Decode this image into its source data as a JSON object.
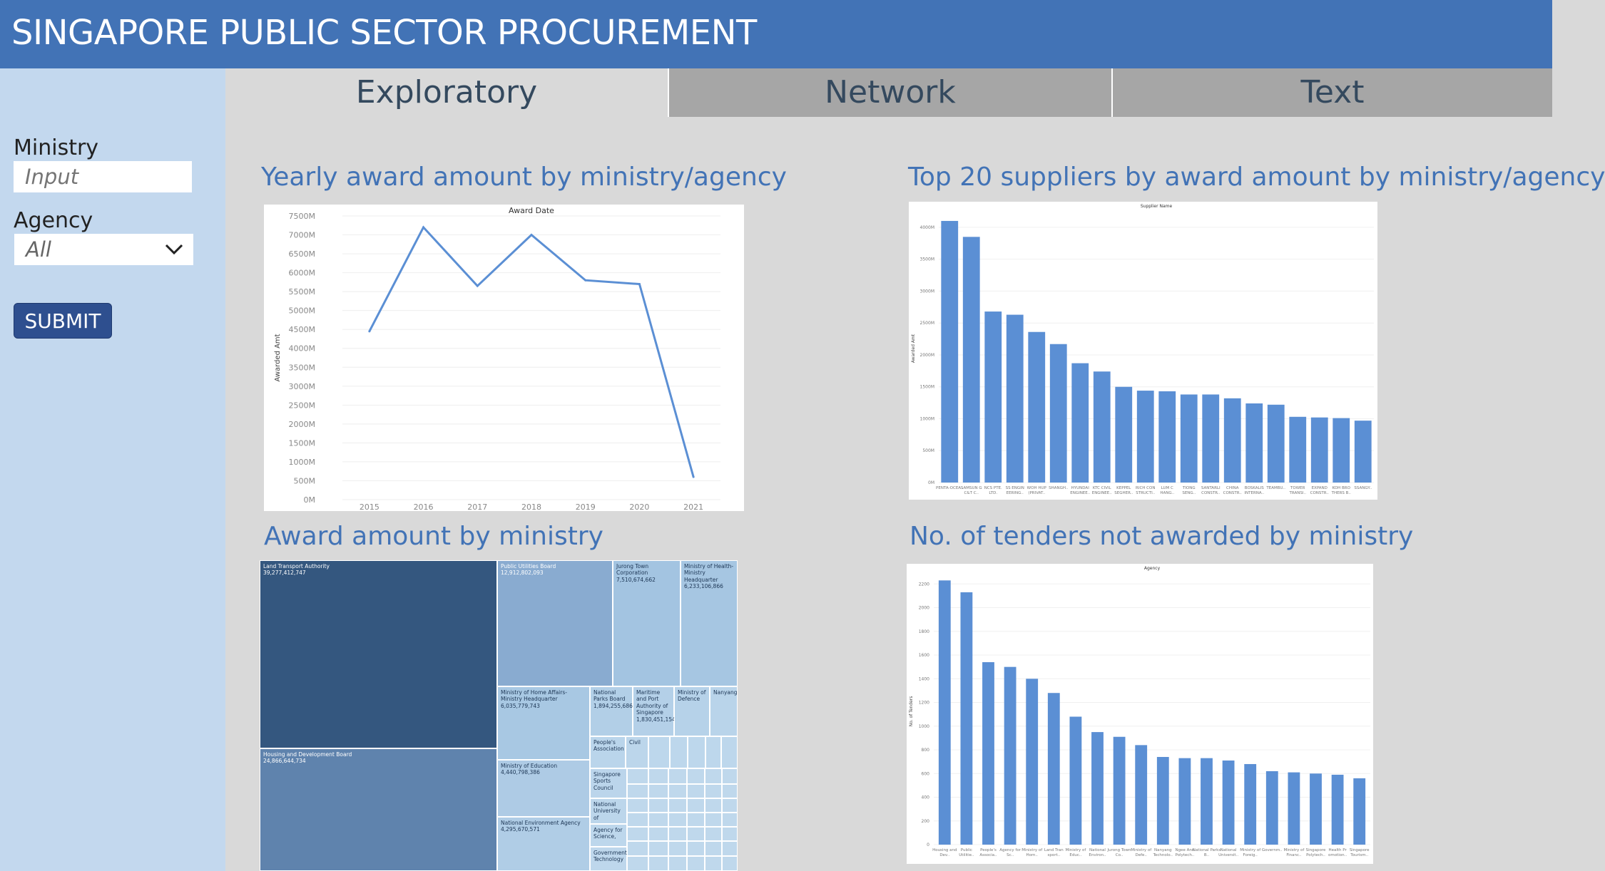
{
  "header": {
    "title": "SINGAPORE PUBLIC SECTOR PROCUREMENT"
  },
  "tabs": [
    {
      "label": "Exploratory",
      "active": true
    },
    {
      "label": "Network",
      "active": false
    },
    {
      "label": "Text",
      "active": false
    }
  ],
  "sidebar": {
    "ministry_label": "Ministry",
    "ministry_placeholder": "Input",
    "agency_label": "Agency",
    "agency_value": "All",
    "submit_label": "SUBMIT"
  },
  "panels": {
    "yearly_title": "Yearly award amount by ministry/agency",
    "suppliers_title": "Top 20 suppliers by award amount by ministry/agency",
    "treemap_title": "Award amount by ministry",
    "tenders_title": "No. of tenders not awarded by ministry"
  },
  "chart_data": [
    {
      "type": "line",
      "title": "Award Date",
      "ylabel": "Awarded Amt",
      "x": [
        "2015",
        "2016",
        "2017",
        "2018",
        "2019",
        "2020",
        "2021"
      ],
      "y": [
        4450,
        7200,
        5650,
        7000,
        5800,
        5700,
        600
      ],
      "y_ticks": [
        "0M",
        "500M",
        "1000M",
        "1500M",
        "2000M",
        "2500M",
        "3000M",
        "3500M",
        "4000M",
        "4500M",
        "5000M",
        "5500M",
        "6000M",
        "6500M",
        "7000M",
        "7500M"
      ],
      "ylim": [
        0,
        7500
      ],
      "color": "#5b8fd4",
      "grid": true
    },
    {
      "type": "bar",
      "title": "Supplier Name",
      "ylabel": "Awarded Amt",
      "categories": [
        "PENTA-OCEA..",
        "SAMSUN G C&T C..",
        "NCS PTE. LTD.",
        "SS ENGIN EERING..",
        "WOH HUP (PRIVAT..",
        "SHANGH..",
        "HYUNDAI ENGINEE..",
        "KTC CIVIL ENGINEE..",
        "KEPPEL SEGHER..",
        "RICH CON STRUCTI..",
        "LUM C HANG..",
        "TIONG SENG..",
        "SANTARLI CONSTR..",
        "CHINA CONSTR..",
        "BOSKALIS INTERNA..",
        "TEAMBU..",
        "TOWER TRANSI..",
        "EXPAND CONSTR..",
        "KOH BRO THERS B..",
        "SSANGY.."
      ],
      "values": [
        4100,
        3850,
        2680,
        2630,
        2360,
        2170,
        1870,
        1740,
        1500,
        1440,
        1430,
        1380,
        1380,
        1320,
        1240,
        1220,
        1030,
        1020,
        1010,
        970
      ],
      "y_ticks": [
        "0M",
        "500M",
        "1000M",
        "1500M",
        "2000M",
        "2500M",
        "3000M",
        "3500M",
        "4000M"
      ],
      "ylim": [
        0,
        4200
      ],
      "color": "#5b8fd4"
    },
    {
      "type": "bar",
      "title": "Agency",
      "ylabel": "No. of Tenders",
      "categories": [
        "Housing and Dev..",
        "Public Utilitie..",
        "People's Associa..",
        "Agency for Sc..",
        "Ministry of Hom..",
        "Land Tran sport..",
        "Ministry of Educ..",
        "National Environ..",
        "Jurong Town Co..",
        "Ministry of Defe..",
        "Nanyang Technolo..",
        "Ngee Ann Polytech..",
        "National Parks B..",
        "National Universit..",
        "Ministry of Foreig..",
        "Governm..",
        "Ministry of Financ..",
        "Singapore Polytech..",
        "Health Pr omotion..",
        "Singapore Tourism.."
      ],
      "values": [
        2230,
        2130,
        1540,
        1500,
        1400,
        1280,
        1080,
        950,
        910,
        840,
        740,
        730,
        730,
        710,
        680,
        620,
        610,
        600,
        590,
        560
      ],
      "y_ticks": [
        "0",
        "200",
        "400",
        "600",
        "800",
        "1000",
        "1200",
        "1400",
        "1600",
        "1800",
        "2000",
        "2200"
      ],
      "ylim": [
        0,
        2250
      ],
      "color": "#5b8fd4"
    },
    {
      "type": "treemap",
      "cells": [
        {
          "name": "Land Transport Authority",
          "value": "39,277,412,747"
        },
        {
          "name": "Housing and Development Board",
          "value": "24,866,644,734"
        },
        {
          "name": "Public Utilities Board",
          "value": "12,912,802,093"
        },
        {
          "name": "Jurong Town Corporation",
          "value": "7,510,674,662"
        },
        {
          "name": "Ministry of Health-Ministry Headquarter",
          "value": "6,233,106,866"
        },
        {
          "name": "Ministry of Home Affairs-Ministry Headquarter",
          "value": "6,035,779,743"
        },
        {
          "name": "National Parks Board",
          "value": "1,894,255,686"
        },
        {
          "name": "Maritime and Port Authority of Singapore",
          "value": "1,830,451,154"
        },
        {
          "name": "Ministry of Defence",
          "value": ""
        },
        {
          "name": "Nanyang",
          "value": ""
        },
        {
          "name": "People's Association",
          "value": ""
        },
        {
          "name": "Civil",
          "value": ""
        },
        {
          "name": "Ministry of Education",
          "value": "4,440,798,386"
        },
        {
          "name": "Singapore Sports Council",
          "value": ""
        },
        {
          "name": "National University of",
          "value": ""
        },
        {
          "name": "National Environment Agency",
          "value": "4,295,670,571"
        },
        {
          "name": "Agency for Science,",
          "value": ""
        },
        {
          "name": "Government Technology",
          "value": ""
        }
      ]
    }
  ]
}
